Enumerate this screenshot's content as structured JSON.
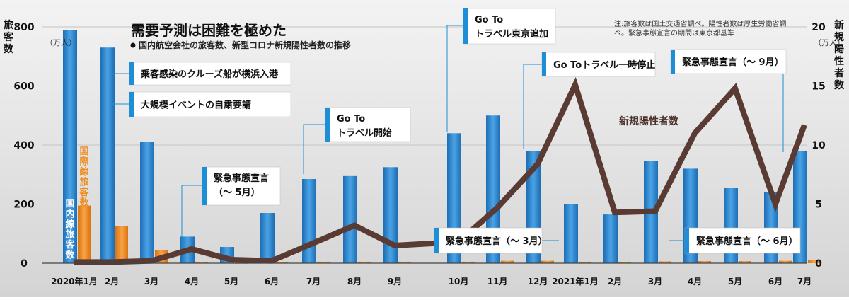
{
  "title": "需要予測は困難を極めた",
  "subtitle": "国内航空会社の旅客数、新型コロナ新規陽性者数の推移",
  "note": [
    "注:旅客数は国土交通省調べ。陽性者数は厚生労働省調",
    "べ。緊急事態宣言の期間は東京都基準"
  ],
  "left_axis": {
    "label": "旅客数",
    "unit": "（万人）",
    "ticks": [
      "800",
      "600",
      "400",
      "200",
      "0"
    ]
  },
  "right_axis": {
    "label": "新規陽性者数",
    "unit": "（万人）",
    "ticks": [
      "20",
      "15",
      "10",
      "5",
      "0"
    ]
  },
  "series_labels": {
    "domestic": "国内線旅客数",
    "international": "国際線旅客数",
    "positives": "新規陽性者数"
  },
  "colors": {
    "domestic": "#2f86cf",
    "international": "#f08c1e",
    "line": "#5a3b33",
    "callout_bar": "#1e8fd6"
  },
  "callouts": [
    {
      "lines": [
        "乗客感染のクルーズ船が横浜入港"
      ]
    },
    {
      "lines": [
        "大規模イベントの自粛要請"
      ]
    },
    {
      "lines": [
        "緊急事態宣言",
        "（～ 5月）"
      ]
    },
    {
      "lines": [
        "Go To",
        "トラベル開始"
      ]
    },
    {
      "lines": [
        "Go To",
        "トラベル東京追加"
      ]
    },
    {
      "lines": [
        "Go Toトラベル一時停止"
      ]
    },
    {
      "lines": [
        "緊急事態宣言（～ 9月）"
      ]
    },
    {
      "lines": [
        "緊急事態宣言（～ 3月）"
      ]
    },
    {
      "lines": [
        "緊急事態宣言（～ 6月）"
      ]
    }
  ],
  "chart_data": {
    "type": "bar",
    "title": "需要予測は困難を極めた",
    "subtitle": "国内航空会社の旅客数、新型コロナ新規陽性者数の推移",
    "categories": [
      "2020年1月",
      "2月",
      "3月",
      "4月",
      "5月",
      "6月",
      "7月",
      "8月",
      "9月",
      "10月",
      "11月",
      "12月",
      "2021年1月",
      "2月",
      "3月",
      "4月",
      "5月",
      "6月",
      "7月"
    ],
    "series": [
      {
        "name": "国内線旅客数",
        "type": "bar",
        "axis": "left",
        "values": [
          790,
          730,
          410,
          90,
          55,
          170,
          285,
          295,
          325,
          440,
          500,
          380,
          200,
          165,
          345,
          320,
          255,
          240,
          380
        ]
      },
      {
        "name": "国際線旅客数",
        "type": "bar",
        "axis": "left",
        "values": [
          195,
          125,
          45,
          4,
          3,
          4,
          5,
          5,
          5,
          5,
          8,
          8,
          5,
          4,
          6,
          7,
          7,
          8,
          10
        ]
      },
      {
        "name": "新規陽性者数",
        "type": "line",
        "axis": "right",
        "values": [
          0.1,
          0.1,
          0.2,
          1.2,
          0.3,
          0.2,
          1.7,
          3.2,
          1.5,
          1.8,
          4.7,
          8.4,
          15.1,
          4.3,
          4.4,
          11.0,
          14.8,
          5.0,
          11.7
        ]
      }
    ],
    "ylim_left": [
      0,
      800
    ],
    "ylim_right": [
      0,
      20
    ],
    "ylabel_left": "旅客数（万人）",
    "ylabel_right": "新規陽性者数（万人）",
    "grid": true
  }
}
